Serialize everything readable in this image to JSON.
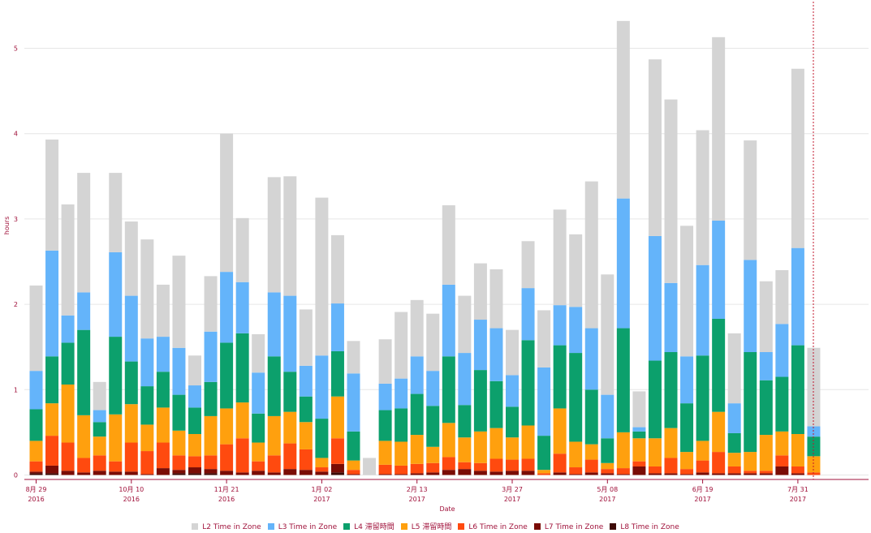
{
  "chart_data": {
    "type": "bar",
    "stacked": true,
    "title": "",
    "xlabel": "Date",
    "ylabel": "hours",
    "ylim": [
      0,
      5.45
    ],
    "yticks": [
      "0",
      "1",
      "2",
      "3",
      "4",
      "5"
    ],
    "xticks": [
      {
        "index": 0,
        "line1": "8月 29",
        "line2": "2016"
      },
      {
        "index": 6,
        "line1": "10月 10",
        "line2": "2016"
      },
      {
        "index": 12,
        "line1": "11月 21",
        "line2": "2016"
      },
      {
        "index": 18,
        "line1": "1月 02",
        "line2": "2017"
      },
      {
        "index": 24,
        "line1": "2月 13",
        "line2": "2017"
      },
      {
        "index": 30,
        "line1": "3月 27",
        "line2": "2017"
      },
      {
        "index": 36,
        "line1": "5月 08",
        "line2": "2017"
      },
      {
        "index": 42,
        "line1": "6月 19",
        "line2": "2017"
      },
      {
        "index": 48,
        "line1": "7月 31",
        "line2": "2017"
      }
    ],
    "grid": true,
    "legend_position": "bottom",
    "series": [
      {
        "name": "L8 Time in Zone",
        "color": "#3d0a06",
        "values": [
          0.02,
          0.02,
          0,
          0,
          0,
          0,
          0,
          0,
          0,
          0.02,
          0.02,
          0.02,
          0,
          0,
          0,
          0,
          0,
          0,
          0,
          0.03,
          0,
          0,
          0,
          0,
          0,
          0,
          0,
          0,
          0,
          0,
          0,
          0,
          0,
          0,
          0,
          0,
          0,
          0,
          0,
          0,
          0,
          0,
          0,
          0,
          0,
          0,
          0,
          0,
          0,
          0
        ]
      },
      {
        "name": "L7 Time in Zone",
        "color": "#7a0c05",
        "values": [
          0.02,
          0.09,
          0.05,
          0.03,
          0.05,
          0.04,
          0.04,
          0.01,
          0.08,
          0.04,
          0.07,
          0.05,
          0.05,
          0.03,
          0.05,
          0.03,
          0.07,
          0.06,
          0.04,
          0.1,
          0.01,
          0,
          0.01,
          0.01,
          0.02,
          0.03,
          0.06,
          0.07,
          0.05,
          0.04,
          0.05,
          0.05,
          0,
          0.03,
          0.01,
          0.03,
          0.02,
          0.01,
          0.1,
          0.02,
          0.02,
          0.01,
          0.03,
          0.02,
          0.02,
          0.02,
          0.02,
          0.1,
          0.02,
          0
        ]
      },
      {
        "name": "L6 Time in Zone",
        "color": "#ff4a0f",
        "values": [
          0.12,
          0.35,
          0.33,
          0.17,
          0.18,
          0.12,
          0.34,
          0.27,
          0.3,
          0.17,
          0.13,
          0.16,
          0.31,
          0.4,
          0.11,
          0.2,
          0.3,
          0.24,
          0.05,
          0.3,
          0.05,
          0,
          0.11,
          0.1,
          0.11,
          0.11,
          0.15,
          0.08,
          0.09,
          0.15,
          0.13,
          0.14,
          0.02,
          0.22,
          0.08,
          0.15,
          0.05,
          0.07,
          0.06,
          0.08,
          0.18,
          0.06,
          0.14,
          0.25,
          0.08,
          0.03,
          0.03,
          0.13,
          0.08,
          0.03
        ]
      },
      {
        "name": "L5 滞留時間",
        "color": "#ffa00e",
        "values": [
          0.24,
          0.38,
          0.68,
          0.5,
          0.22,
          0.55,
          0.45,
          0.31,
          0.41,
          0.29,
          0.26,
          0.46,
          0.42,
          0.42,
          0.22,
          0.46,
          0.37,
          0.32,
          0.11,
          0.49,
          0.11,
          0,
          0.28,
          0.28,
          0.34,
          0.19,
          0.4,
          0.29,
          0.37,
          0.36,
          0.26,
          0.39,
          0.04,
          0.53,
          0.3,
          0.18,
          0.07,
          0.42,
          0.27,
          0.33,
          0.35,
          0.2,
          0.23,
          0.47,
          0.16,
          0.22,
          0.42,
          0.28,
          0.38,
          0.19
        ]
      },
      {
        "name": "L4 滞留時間",
        "color": "#0ca06c",
        "values": [
          0.37,
          0.55,
          0.49,
          1.0,
          0.17,
          0.91,
          0.5,
          0.45,
          0.42,
          0.42,
          0.31,
          0.4,
          0.77,
          0.81,
          0.34,
          0.7,
          0.47,
          0.3,
          0.46,
          0.53,
          0.34,
          0,
          0.36,
          0.39,
          0.48,
          0.48,
          0.78,
          0.38,
          0.72,
          0.55,
          0.36,
          1.0,
          0.4,
          0.74,
          1.04,
          0.64,
          0.29,
          1.22,
          0.08,
          0.91,
          0.89,
          0.57,
          1.0,
          1.09,
          0.23,
          1.17,
          0.64,
          0.64,
          1.04,
          0.23
        ]
      },
      {
        "name": "L3 Time in Zone",
        "color": "#64b4fa",
        "values": [
          0.45,
          1.24,
          0.32,
          0.44,
          0.14,
          0.99,
          0.77,
          0.56,
          0.41,
          0.55,
          0.26,
          0.59,
          0.83,
          0.6,
          0.48,
          0.75,
          0.89,
          0.36,
          0.74,
          0.56,
          0.68,
          0,
          0.31,
          0.35,
          0.44,
          0.41,
          0.84,
          0.61,
          0.59,
          0.62,
          0.37,
          0.61,
          0.8,
          0.47,
          0.54,
          0.72,
          0.51,
          1.52,
          0.05,
          1.46,
          0.81,
          0.55,
          1.06,
          1.15,
          0.35,
          1.08,
          0.33,
          0.62,
          1.14,
          0.12
        ]
      },
      {
        "name": "L2 Time in Zone",
        "color": "#d4d4d4",
        "values": [
          1.0,
          1.3,
          1.3,
          1.4,
          0.33,
          0.93,
          0.87,
          1.16,
          0.61,
          1.08,
          0.35,
          0.65,
          1.62,
          0.75,
          0.45,
          1.35,
          1.4,
          0.66,
          1.85,
          0.8,
          0.38,
          0.2,
          0.52,
          0.78,
          0.66,
          0.67,
          0.93,
          0.67,
          0.66,
          0.69,
          0.53,
          0.55,
          0.67,
          1.12,
          0.85,
          1.72,
          1.41,
          2.08,
          0.42,
          2.07,
          2.15,
          1.53,
          1.58,
          2.15,
          0.82,
          1.4,
          0.83,
          0.63,
          2.1,
          0.92
        ]
      }
    ],
    "marker_line_index": 49
  }
}
